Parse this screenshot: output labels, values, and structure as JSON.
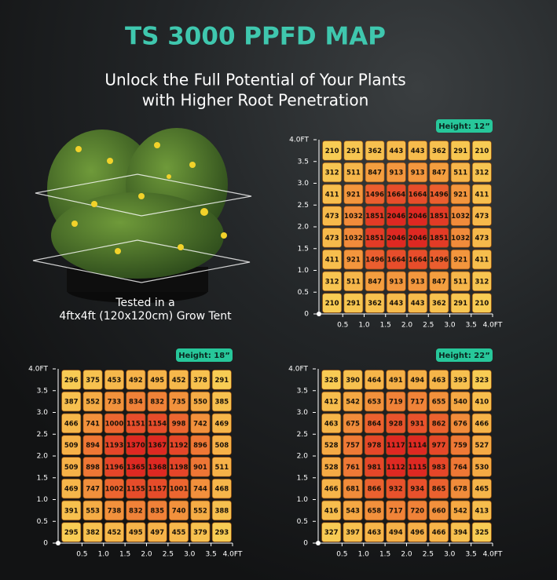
{
  "header": {
    "title": "TS 3000 PPFD MAP",
    "subtitle": [
      "Unlock the Full Potential of Your Plants",
      "with Higher Root Penetration"
    ]
  },
  "caption": [
    "Tested in a",
    "4ftx4ft (120x120cm) Grow Tent"
  ],
  "chart_data": [
    {
      "type": "heatmap",
      "title": "Height: 12”",
      "xlim": [
        0,
        4
      ],
      "ylim": [
        0,
        4
      ],
      "xticks": [
        0.5,
        {
          "value": 1,
          "label": "1.0"
        },
        1.5,
        {
          "value": 2,
          "label": "2.0"
        },
        2.5,
        {
          "value": 3,
          "label": "3.0"
        },
        3.5,
        {
          "value": 4,
          "label": "4.0FT"
        }
      ],
      "yticks": [
        0,
        0.5,
        {
          "value": 1,
          "label": "1.0"
        },
        1.5,
        {
          "value": 2,
          "label": "2.0"
        },
        2.5,
        {
          "value": 3,
          "label": "3.0"
        },
        3.5,
        {
          "value": 4,
          "label": "4.0FT"
        }
      ],
      "values": [
        [
          210,
          291,
          362,
          443,
          443,
          362,
          291,
          210
        ],
        [
          312,
          511,
          847,
          913,
          913,
          847,
          511,
          312
        ],
        [
          411,
          921,
          1496,
          1664,
          1664,
          1496,
          921,
          411
        ],
        [
          473,
          1032,
          1851,
          2046,
          2046,
          1851,
          1032,
          473
        ],
        [
          473,
          1032,
          1851,
          2046,
          2046,
          1851,
          1032,
          473
        ],
        [
          411,
          921,
          1496,
          1664,
          1664,
          1496,
          921,
          411
        ],
        [
          312,
          511,
          847,
          913,
          913,
          847,
          511,
          312
        ],
        [
          210,
          291,
          362,
          443,
          443,
          362,
          291,
          210
        ]
      ]
    },
    {
      "type": "heatmap",
      "title": "Height: 18”",
      "xlim": [
        0,
        4
      ],
      "ylim": [
        0,
        4
      ],
      "xticks": [
        0.5,
        {
          "value": 1,
          "label": "1.0"
        },
        1.5,
        {
          "value": 2,
          "label": "2.0"
        },
        2.5,
        {
          "value": 3,
          "label": "3.0"
        },
        3.5,
        {
          "value": 4,
          "label": "4.0FT"
        }
      ],
      "yticks": [
        0,
        0.5,
        {
          "value": 1,
          "label": "1.0"
        },
        1.5,
        {
          "value": 2,
          "label": "2.0"
        },
        2.5,
        {
          "value": 3,
          "label": "3.0"
        },
        3.5,
        {
          "value": 4,
          "label": "4.0FT"
        }
      ],
      "values": [
        [
          296,
          375,
          453,
          492,
          495,
          452,
          378,
          291
        ],
        [
          387,
          552,
          733,
          834,
          832,
          735,
          550,
          385
        ],
        [
          466,
          741,
          1000,
          1151,
          1154,
          998,
          742,
          469
        ],
        [
          509,
          894,
          1193,
          1370,
          1367,
          1192,
          896,
          508
        ],
        [
          509,
          898,
          1196,
          1365,
          1368,
          1198,
          901,
          511
        ],
        [
          469,
          747,
          1002,
          1155,
          1157,
          1001,
          744,
          468
        ],
        [
          391,
          553,
          738,
          832,
          835,
          740,
          552,
          388
        ],
        [
          295,
          382,
          452,
          495,
          497,
          455,
          379,
          293
        ]
      ]
    },
    {
      "type": "heatmap",
      "title": "Height: 22”",
      "xlim": [
        0,
        4
      ],
      "ylim": [
        0,
        4
      ],
      "xticks": [
        0.5,
        {
          "value": 1,
          "label": "1.0"
        },
        1.5,
        {
          "value": 2,
          "label": "2.0"
        },
        2.5,
        {
          "value": 3,
          "label": "3.0"
        },
        3.5,
        {
          "value": 4,
          "label": "4.0FT"
        }
      ],
      "yticks": [
        0,
        0.5,
        {
          "value": 1,
          "label": "1.0"
        },
        1.5,
        {
          "value": 2,
          "label": "2.0"
        },
        2.5,
        {
          "value": 3,
          "label": "3.0"
        },
        3.5,
        {
          "value": 4,
          "label": "4.0FT"
        }
      ],
      "values": [
        [
          328,
          390,
          464,
          491,
          494,
          463,
          393,
          323
        ],
        [
          412,
          542,
          653,
          719,
          717,
          655,
          540,
          410
        ],
        [
          463,
          675,
          864,
          928,
          931,
          862,
          676,
          466
        ],
        [
          528,
          757,
          978,
          1117,
          1114,
          977,
          759,
          527
        ],
        [
          528,
          761,
          981,
          1112,
          1115,
          983,
          764,
          530
        ],
        [
          466,
          681,
          866,
          932,
          934,
          865,
          678,
          465
        ],
        [
          416,
          543,
          658,
          717,
          720,
          660,
          542,
          413
        ],
        [
          327,
          397,
          463,
          494,
          496,
          466,
          394,
          325
        ]
      ]
    }
  ]
}
